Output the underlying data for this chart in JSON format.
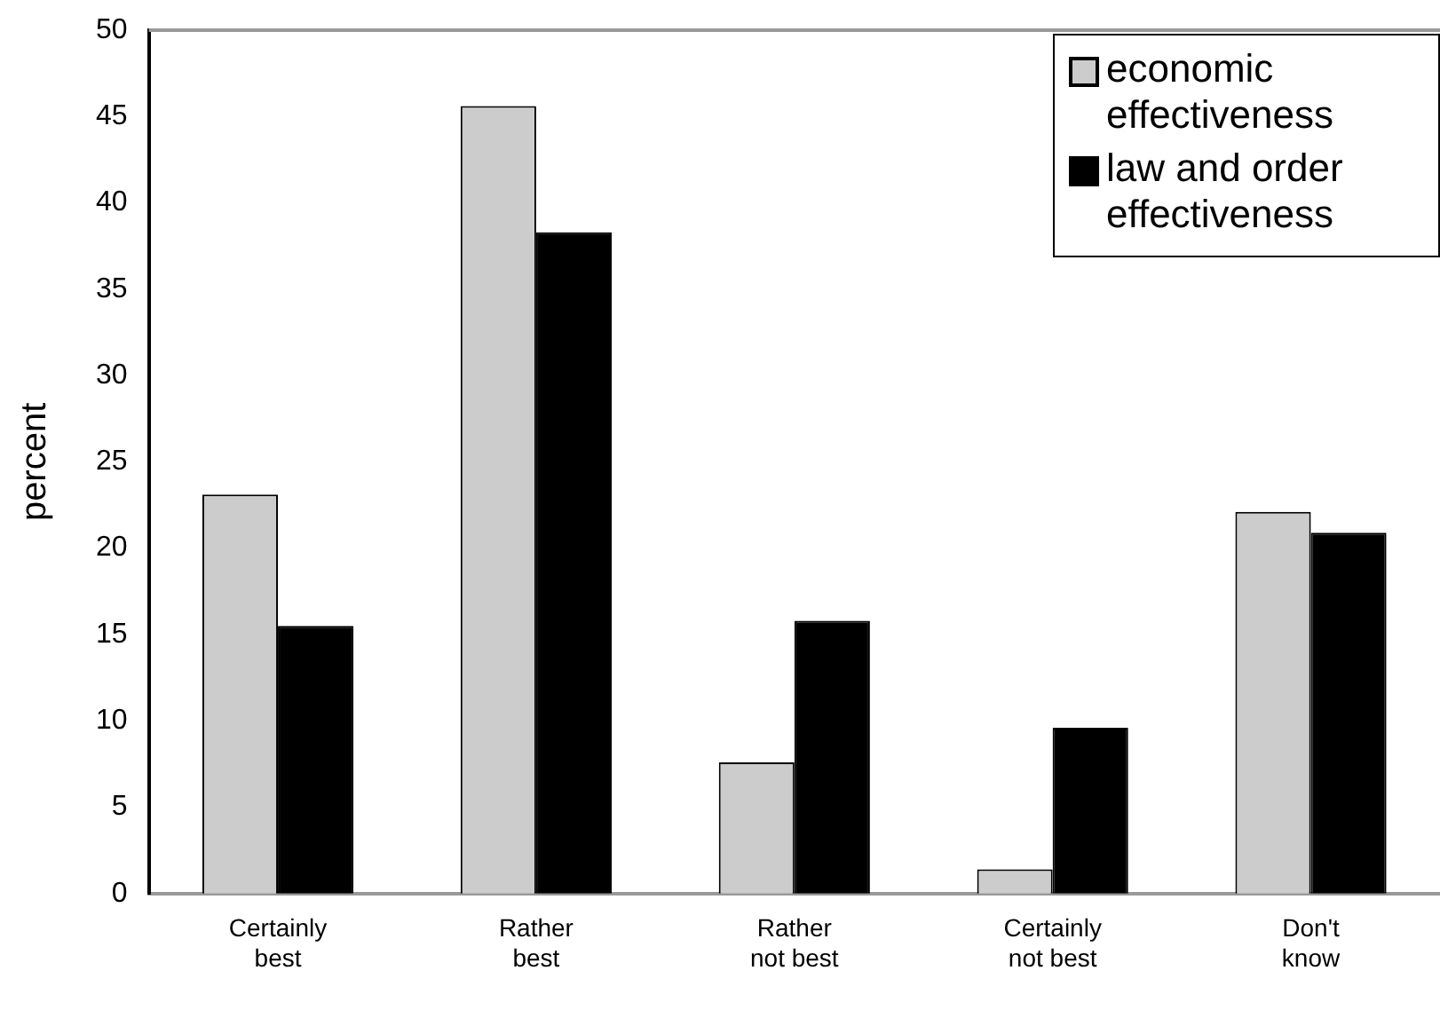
{
  "chart_data": {
    "type": "bar",
    "ylabel": "percent",
    "categories": [
      "Certainly best",
      "Rather best",
      "Rather not best",
      "Certainly not best",
      "Don't know"
    ],
    "series": [
      {
        "name": "economic effectiveness",
        "color": "#cccccc",
        "values": [
          23.1,
          45.6,
          7.6,
          1.4,
          22.1
        ]
      },
      {
        "name": "law and order effectiveness",
        "color": "#000000",
        "values": [
          15.5,
          38.3,
          15.8,
          9.6,
          20.9
        ]
      }
    ],
    "ylim": [
      0,
      50
    ],
    "yticks": [
      0,
      5,
      10,
      15,
      20,
      25,
      30,
      35,
      40,
      45,
      50
    ],
    "grid": false,
    "legend": "top right"
  }
}
